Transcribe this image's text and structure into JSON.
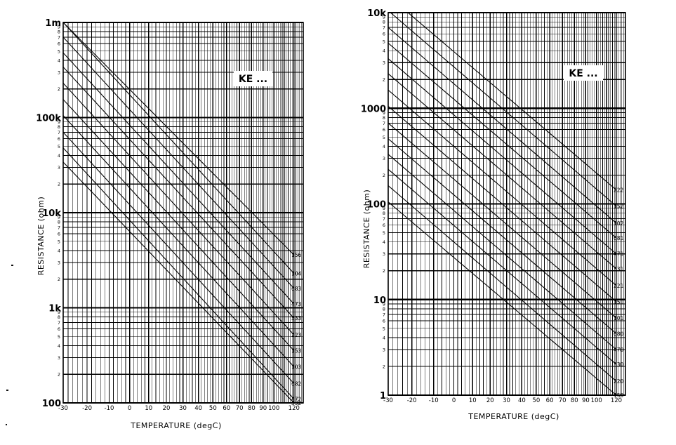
{
  "chart_data": [
    {
      "type": "line",
      "title": "KE ...",
      "xlabel": "TEMPERATURE (degC)",
      "ylabel": "RESISTANCE (ohm)",
      "x_scale": "nonlinear (proportional to 1/T)",
      "y_scale": "log",
      "xlim": [
        -30,
        130
      ],
      "ylim": [
        100,
        1000000
      ],
      "grid": true,
      "x_tick_labels": [
        "-30",
        "-20",
        "-10",
        "0",
        "10",
        "20",
        "30",
        "40",
        "50",
        "60",
        "70",
        "80",
        "90",
        "100",
        "120"
      ],
      "y_major_labels": [
        "100",
        "1k",
        "10k",
        "100k",
        "1m"
      ],
      "y_minor_labels": [
        "2",
        "3",
        "4",
        "5",
        "6",
        "7",
        "8",
        "9"
      ],
      "series": [
        {
          "name": "156",
          "x": [
            -30,
            120
          ],
          "y": [
            1000000,
            3600
          ]
        },
        {
          "name": "104",
          "x": [
            -30,
            120
          ],
          "y": [
            1000000,
            2300
          ]
        },
        {
          "name": "683",
          "x": [
            -30,
            120
          ],
          "y": [
            700000,
            1600
          ]
        },
        {
          "name": "473",
          "x": [
            -30,
            120
          ],
          "y": [
            480000,
            1100
          ]
        },
        {
          "name": "333",
          "x": [
            -30,
            120
          ],
          "y": [
            340000,
            780
          ]
        },
        {
          "name": "223",
          "x": [
            -30,
            120
          ],
          "y": [
            230000,
            520
          ]
        },
        {
          "name": "153",
          "x": [
            -30,
            120
          ],
          "y": [
            155000,
            355
          ]
        },
        {
          "name": "103",
          "x": [
            -30,
            120
          ],
          "y": [
            105000,
            240
          ]
        },
        {
          "name": "682",
          "x": [
            -30,
            120
          ],
          "y": [
            70000,
            160
          ]
        },
        {
          "name": "472",
          "x": [
            -30,
            120
          ],
          "y": [
            48000,
            110
          ]
        },
        {
          "name": "332",
          "x": [
            -30,
            120
          ],
          "y": [
            34000,
            100
          ]
        }
      ]
    },
    {
      "type": "line",
      "title": "KE ...",
      "xlabel": "TEMPERATURE (degC)",
      "ylabel": "RESISTANCE (ohm)",
      "x_scale": "nonlinear (proportional to 1/T)",
      "y_scale": "log",
      "xlim": [
        -30,
        130
      ],
      "ylim": [
        1,
        10000
      ],
      "grid": true,
      "x_tick_labels": [
        "-30",
        "-20",
        "-10",
        "0",
        "10",
        "20",
        "30",
        "40",
        "50",
        "60",
        "70",
        "80",
        "90",
        "100",
        "120"
      ],
      "y_major_labels": [
        "1",
        "10",
        "100",
        "1000",
        "10k"
      ],
      "y_minor_labels": [
        "2",
        "3",
        "4",
        "5",
        "6",
        "7",
        "8",
        "9"
      ],
      "series": [
        {
          "name": "222",
          "x": [
            -30,
            120
          ],
          "y": [
            15000,
            140
          ]
        },
        {
          "name": "152",
          "x": [
            -30,
            120
          ],
          "y": [
            10500,
            95
          ]
        },
        {
          "name": "102",
          "x": [
            -30,
            120
          ],
          "y": [
            7000,
            63
          ]
        },
        {
          "name": "681",
          "x": [
            -30,
            120
          ],
          "y": [
            4800,
            44
          ]
        },
        {
          "name": "471",
          "x": [
            -30,
            120
          ],
          "y": [
            3300,
            30
          ]
        },
        {
          "name": "331",
          "x": [
            -30,
            120
          ],
          "y": [
            2300,
            21
          ]
        },
        {
          "name": "221",
          "x": [
            -30,
            120
          ],
          "y": [
            1550,
            14
          ]
        },
        {
          "name": "151",
          "x": [
            -30,
            120
          ],
          "y": [
            1050,
            9.5
          ]
        },
        {
          "name": "101",
          "x": [
            -30,
            120
          ],
          "y": [
            700,
            6.4
          ]
        },
        {
          "name": "680",
          "x": [
            -30,
            120
          ],
          "y": [
            480,
            4.4
          ]
        },
        {
          "name": "470",
          "x": [
            -30,
            120
          ],
          "y": [
            330,
            3.0
          ]
        },
        {
          "name": "330",
          "x": [
            -30,
            120
          ],
          "y": [
            230,
            2.1
          ]
        },
        {
          "name": "220",
          "x": [
            -30,
            120
          ],
          "y": [
            155,
            1.4
          ]
        },
        {
          "name": "150",
          "x": [
            -30,
            120
          ],
          "y": [
            105,
            1.0
          ]
        }
      ]
    }
  ]
}
